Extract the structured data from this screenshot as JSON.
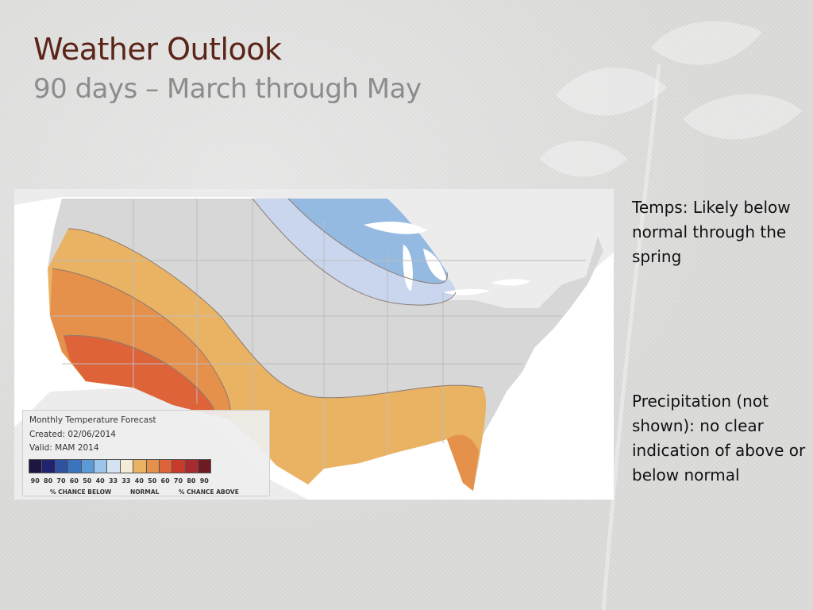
{
  "slide": {
    "title": "Weather Outlook",
    "subtitle": "90 days – March through May"
  },
  "notes": {
    "temps": "Temps: Likely below normal through the spring",
    "precip": "Precipitation (not shown): no clear indication of above or below normal"
  },
  "map": {
    "legend": {
      "title": "Monthly Temperature Forecast",
      "created": "Created: 02/06/2014",
      "valid": "Valid: MAM 2014",
      "scale_values": [
        "90",
        "80",
        "70",
        "60",
        "50",
        "40",
        "33",
        "33",
        "40",
        "50",
        "60",
        "70",
        "80",
        "90"
      ],
      "label_below": "% CHANCE BELOW",
      "label_normal": "NORMAL",
      "label_above": "% CHANCE ABOVE",
      "scale_colors": [
        "#1d1640",
        "#22236f",
        "#2e51a0",
        "#3a74bf",
        "#5c9ad6",
        "#9dc4eb",
        "#d3e3f2",
        "#f4ecd7",
        "#eab363",
        "#e5904b",
        "#de6338",
        "#c83b2a",
        "#a72b2e",
        "#6e1b23"
      ]
    },
    "colors": {
      "ocean": "#ffffff",
      "land_us": "#d7d7d7",
      "land_other": "#ececec",
      "lakes": "#ffffff",
      "above_33": "#eab363",
      "above_40": "#e5904b",
      "above_50": "#de6338",
      "below_33": "#c9d6ee",
      "below_40": "#94bae2"
    }
  },
  "colors": {
    "title": "#5b2418",
    "subtitle": "#8c8c8c",
    "text": "#111111"
  }
}
